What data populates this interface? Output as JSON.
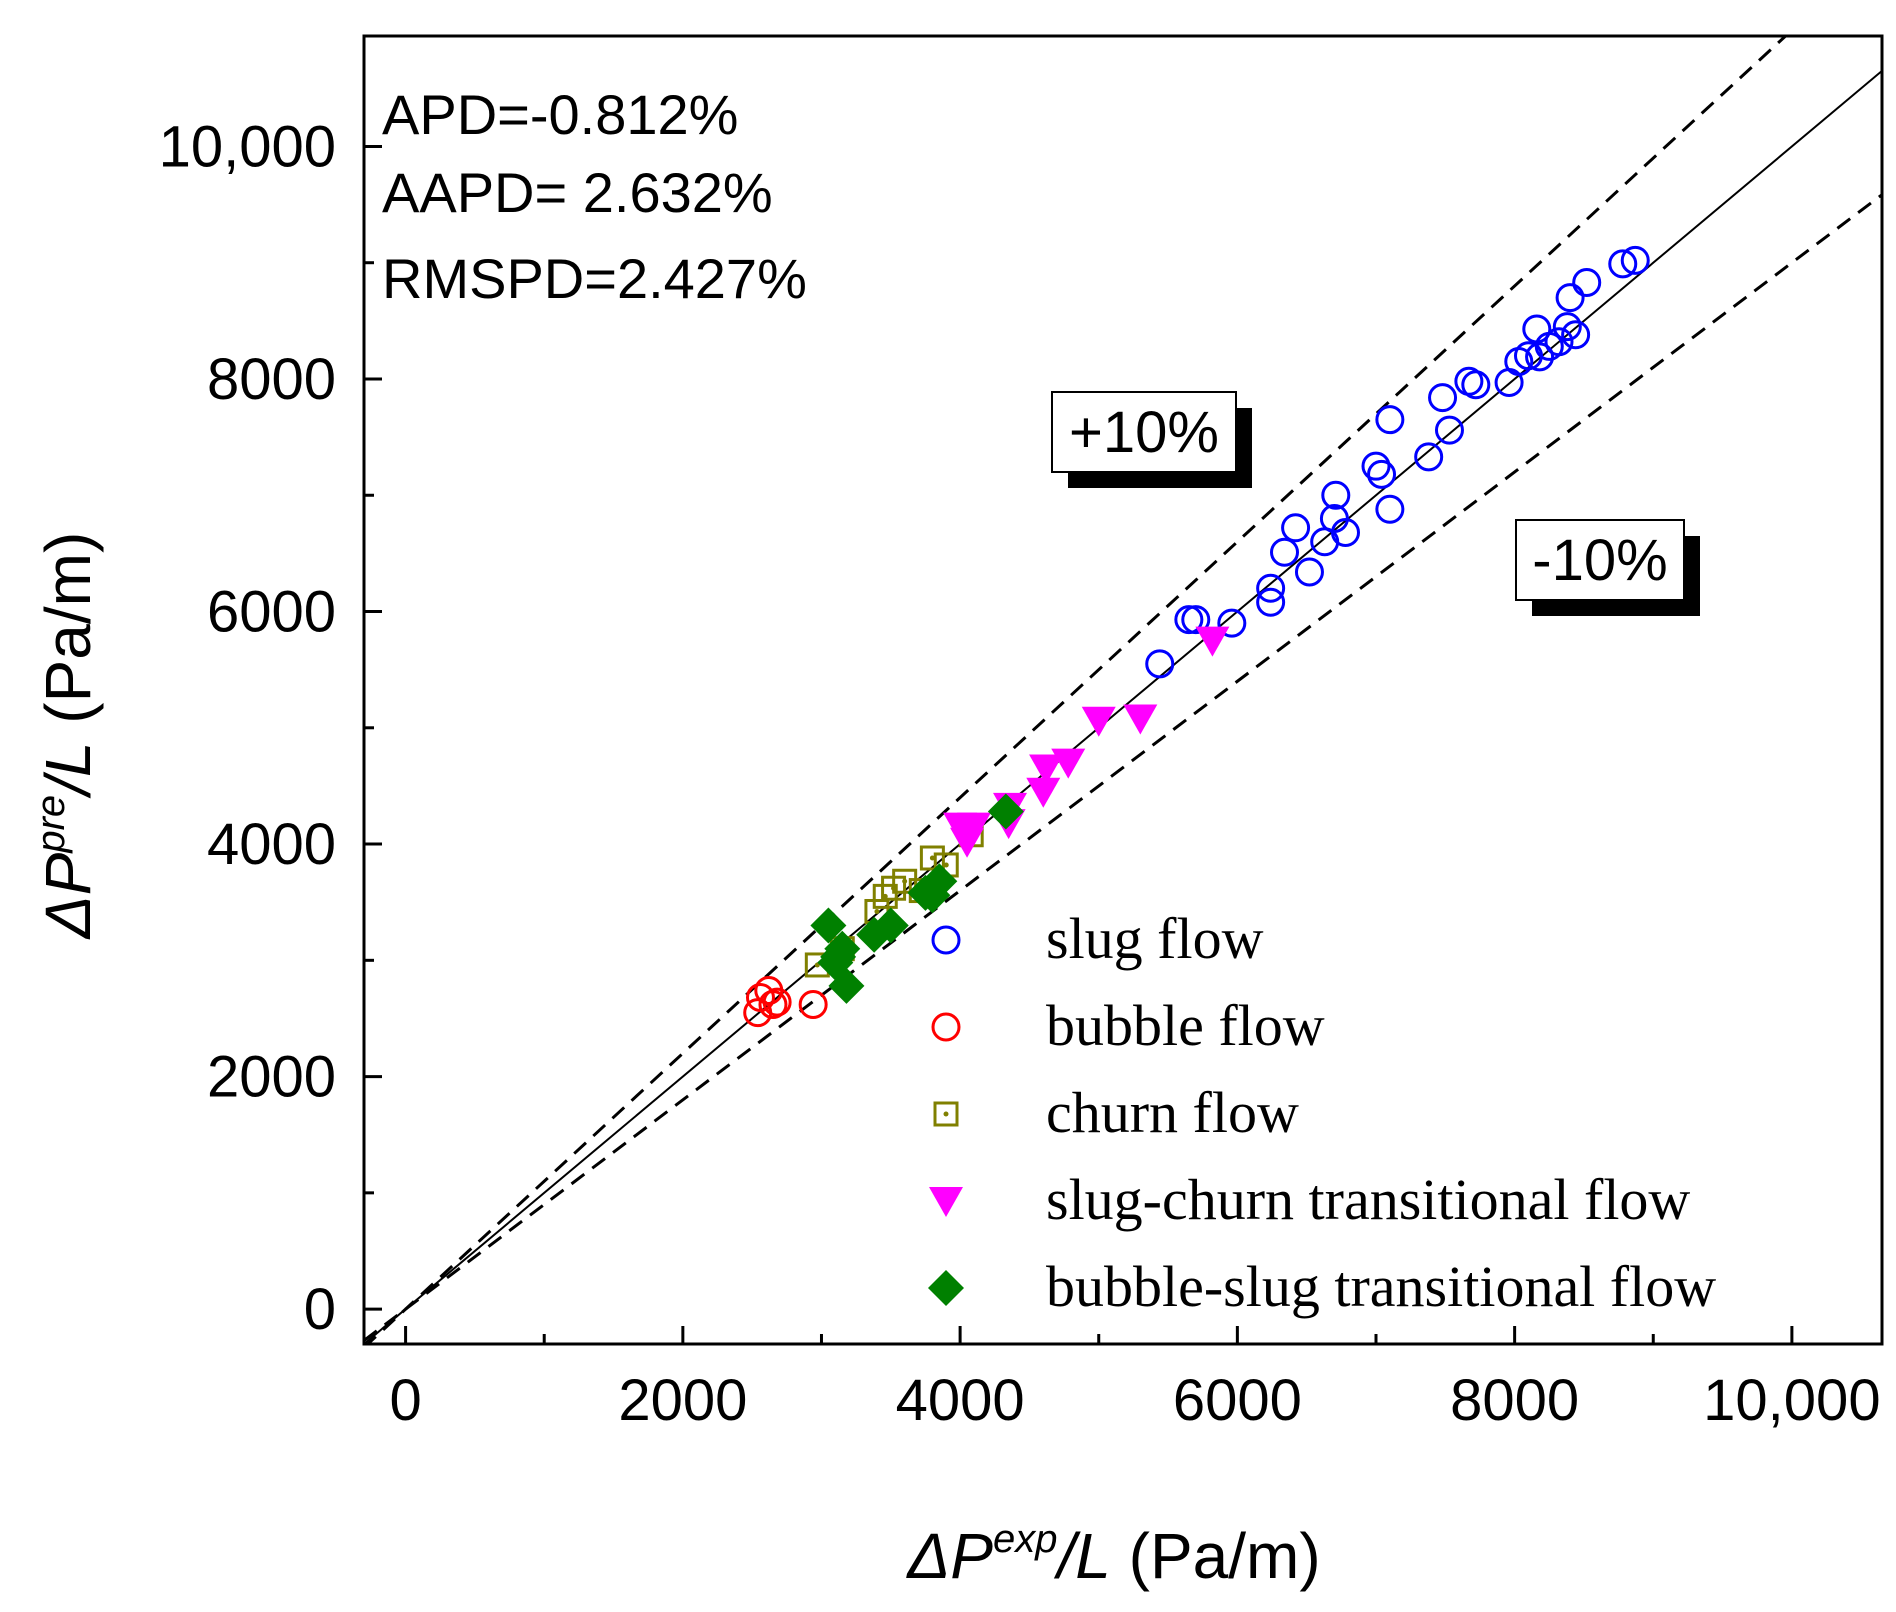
{
  "chart_data": {
    "type": "scatter",
    "title": "",
    "xlabel": {
      "prefix": "ΔP",
      "sup": "exp",
      "suffix": "/L",
      "unit": " (Pa/m)"
    },
    "ylabel": {
      "prefix": "ΔP",
      "sup": "pre",
      "suffix": "/L",
      "unit": " (Pa/m)"
    },
    "xlim": [
      -300,
      10650
    ],
    "ylim": [
      -300,
      10950
    ],
    "xticks": [
      0,
      2000,
      4000,
      6000,
      8000,
      10000
    ],
    "yticks": [
      0,
      2000,
      4000,
      6000,
      8000,
      10000
    ],
    "xtick_labels": [
      "0",
      "2000",
      "4000",
      "6000",
      "8000",
      "10,000"
    ],
    "ytick_labels": [
      "0",
      "2000",
      "4000",
      "6000",
      "8000",
      "10,000"
    ],
    "stats": [
      "APD=-0.812%",
      "AAPD= 2.632%",
      "RMSPD=2.427%"
    ],
    "reference_lines": [
      {
        "name": "y = x",
        "factor": 1.0,
        "style": "solid"
      },
      {
        "name": "+10%",
        "factor": 1.1,
        "style": "dashed"
      },
      {
        "name": "-10%",
        "factor": 0.9,
        "style": "dashed"
      }
    ],
    "band_labels": {
      "plus": "+10%",
      "minus": "-10%"
    },
    "legend_position": "bottom-right",
    "series": [
      {
        "name": "slug flow",
        "marker": "circle-open",
        "color": "#0000ff",
        "points": [
          [
            5440,
            5550
          ],
          [
            5650,
            5930
          ],
          [
            5700,
            5930
          ],
          [
            5960,
            5900
          ],
          [
            6240,
            6080
          ],
          [
            6240,
            6200
          ],
          [
            6340,
            6510
          ],
          [
            6420,
            6720
          ],
          [
            6520,
            6340
          ],
          [
            6630,
            6600
          ],
          [
            6700,
            6800
          ],
          [
            6710,
            7000
          ],
          [
            6780,
            6680
          ],
          [
            7000,
            7250
          ],
          [
            7040,
            7180
          ],
          [
            7100,
            7650
          ],
          [
            7100,
            6880
          ],
          [
            7380,
            7330
          ],
          [
            7480,
            7840
          ],
          [
            7530,
            7560
          ],
          [
            7670,
            7980
          ],
          [
            7720,
            7950
          ],
          [
            7960,
            7970
          ],
          [
            8030,
            8150
          ],
          [
            8100,
            8200
          ],
          [
            8160,
            8430
          ],
          [
            8180,
            8190
          ],
          [
            8250,
            8280
          ],
          [
            8320,
            8320
          ],
          [
            8380,
            8450
          ],
          [
            8400,
            8700
          ],
          [
            8440,
            8380
          ],
          [
            8520,
            8830
          ],
          [
            8780,
            8990
          ],
          [
            8870,
            9020
          ]
        ]
      },
      {
        "name": "bubble flow",
        "marker": "circle-open",
        "color": "#ff0000",
        "points": [
          [
            2540,
            2550
          ],
          [
            2560,
            2680
          ],
          [
            2620,
            2740
          ],
          [
            2650,
            2620
          ],
          [
            2680,
            2640
          ],
          [
            2940,
            2620
          ]
        ]
      },
      {
        "name": "churn flow",
        "marker": "square-dot",
        "color": "#808000",
        "points": [
          [
            2970,
            2960
          ],
          [
            3150,
            3100
          ],
          [
            3400,
            3420
          ],
          [
            3460,
            3550
          ],
          [
            3520,
            3620
          ],
          [
            3600,
            3680
          ],
          [
            3720,
            3600
          ],
          [
            3800,
            3880
          ],
          [
            3900,
            3820
          ],
          [
            4080,
            4080
          ]
        ]
      },
      {
        "name": "slug-churn transitional flow",
        "marker": "triangle-down",
        "color": "#ff00ff",
        "points": [
          [
            4000,
            4150
          ],
          [
            4100,
            4150
          ],
          [
            4050,
            4020
          ],
          [
            4350,
            4180
          ],
          [
            4360,
            4320
          ],
          [
            4600,
            4450
          ],
          [
            4620,
            4650
          ],
          [
            4780,
            4700
          ],
          [
            5000,
            5060
          ],
          [
            5300,
            5080
          ],
          [
            5820,
            5750
          ]
        ]
      },
      {
        "name": "bubble-slug transitional flow",
        "marker": "diamond",
        "color": "#008000",
        "points": [
          [
            3050,
            3300
          ],
          [
            3100,
            2980
          ],
          [
            3120,
            3030
          ],
          [
            3150,
            3100
          ],
          [
            3180,
            2780
          ],
          [
            3380,
            3220
          ],
          [
            3500,
            3300
          ],
          [
            3750,
            3580
          ],
          [
            3800,
            3560
          ],
          [
            3850,
            3680
          ],
          [
            4330,
            4280
          ]
        ]
      }
    ]
  }
}
